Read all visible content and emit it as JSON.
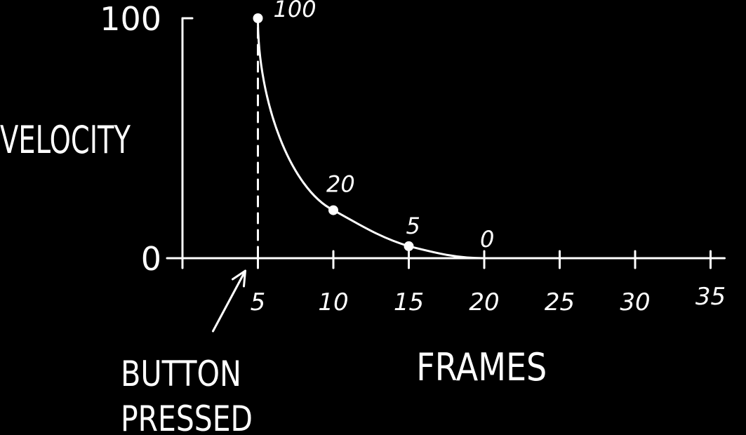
{
  "chart_data": {
    "type": "line",
    "xlabel": "FRAMES",
    "ylabel": "VELOCITY",
    "xlim": [
      0,
      35
    ],
    "ylim": [
      0,
      100
    ],
    "x_ticks": [
      5,
      10,
      15,
      20,
      25,
      30,
      35
    ],
    "y_ticks": [
      0,
      100
    ],
    "series": [
      {
        "points": [
          {
            "x": 5,
            "y": 100,
            "label": "100"
          },
          {
            "x": 10,
            "y": 20,
            "label": "20"
          },
          {
            "x": 15,
            "y": 5,
            "label": "5"
          },
          {
            "x": 20,
            "y": 0,
            "label": "0"
          }
        ]
      }
    ],
    "annotation": {
      "x": 5,
      "line1": "BUTTON",
      "line2": "PRESSED"
    },
    "colors": {
      "background": "#000000",
      "ink": "#ffffff"
    }
  }
}
